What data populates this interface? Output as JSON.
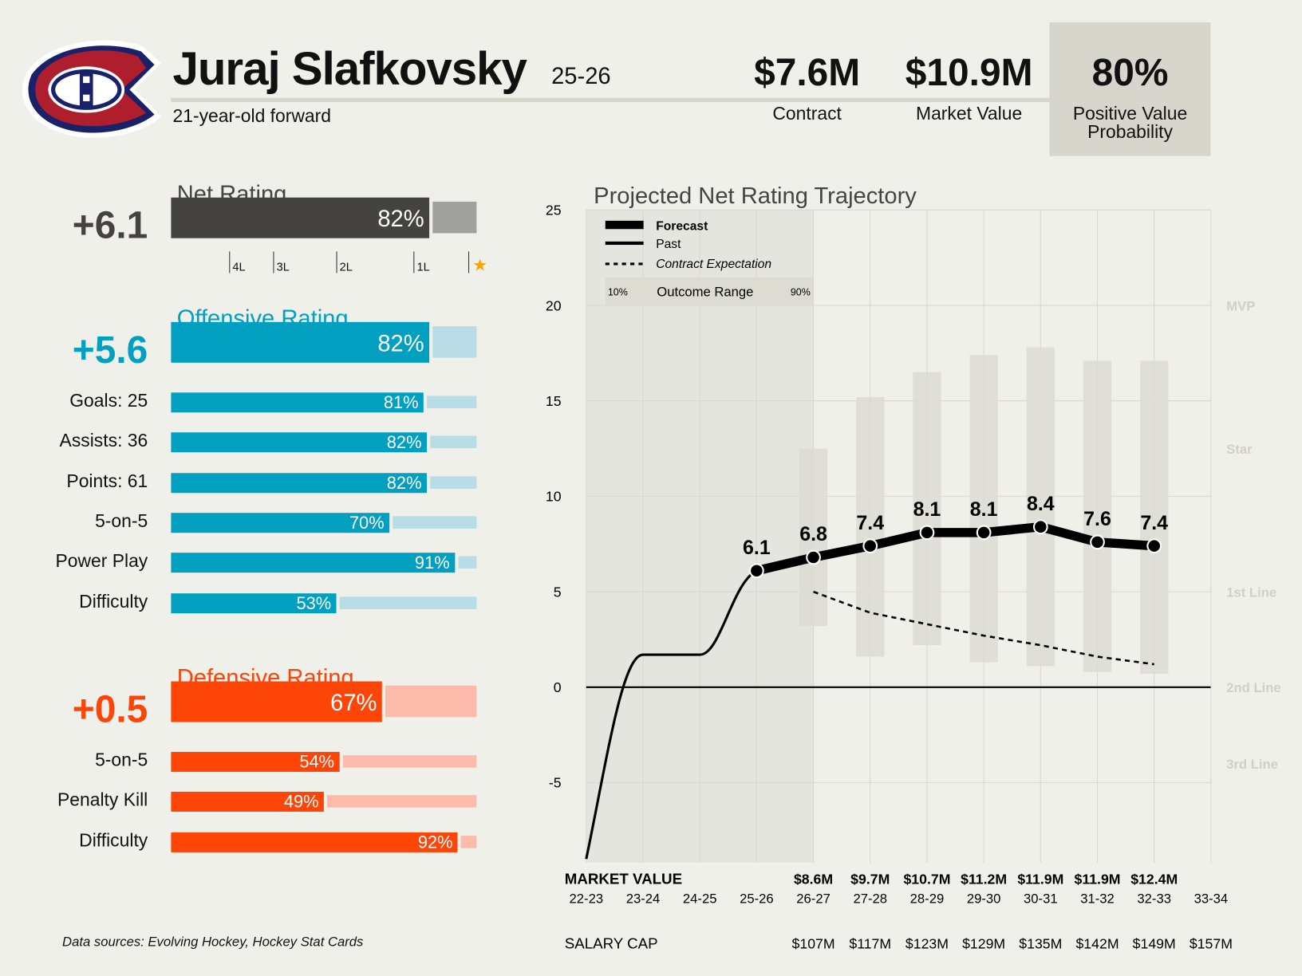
{
  "header": {
    "player": "Juraj Slafkovsky",
    "season": "25-26",
    "subtitle": "21-year-old forward",
    "contract": {
      "value": "$7.6M",
      "label": "Contract"
    },
    "market": {
      "value": "$10.9M",
      "label": "Market Value"
    },
    "pvp": {
      "value": "80%",
      "label1": "Positive Value",
      "label2": "Probability"
    }
  },
  "colors": {
    "net": "#444341",
    "net_light": "#a0a09e",
    "off": "#019fc0",
    "off_light": "#b8dde6",
    "def": "#fd4508",
    "def_light": "#fdbcab",
    "red": "#af1e2d",
    "blue": "#192168"
  },
  "net": {
    "title": "Net Rating",
    "value": "+6.1",
    "pct": 82,
    "pct_label": "82%",
    "ticks": [
      "4L",
      "3L",
      "2L",
      "1L"
    ]
  },
  "offense": {
    "title": "Offensive Rating",
    "value": "+5.6",
    "pct": 82,
    "pct_label": "82%",
    "rows": [
      {
        "label": "Goals: 25",
        "pct": 81,
        "pct_label": "81%"
      },
      {
        "label": "Assists: 36",
        "pct": 82,
        "pct_label": "82%"
      },
      {
        "label": "Points: 61",
        "pct": 82,
        "pct_label": "82%"
      },
      {
        "label": "5-on-5",
        "pct": 70,
        "pct_label": "70%"
      },
      {
        "label": "Power Play",
        "pct": 91,
        "pct_label": "91%"
      },
      {
        "label": "Difficulty",
        "pct": 53,
        "pct_label": "53%"
      }
    ]
  },
  "defense": {
    "title": "Defensive Rating",
    "value": "+0.5",
    "pct": 67,
    "pct_label": "67%",
    "rows": [
      {
        "label": "5-on-5",
        "pct": 54,
        "pct_label": "54%"
      },
      {
        "label": "Penalty Kill",
        "pct": 49,
        "pct_label": "49%"
      },
      {
        "label": "Difficulty",
        "pct": 92,
        "pct_label": "92%"
      }
    ]
  },
  "footer": {
    "sources": "Data sources: Evolving Hockey, Hockey Stat Cards"
  },
  "chart_data": {
    "type": "line",
    "title": "Projected Net Rating Trajectory",
    "categories": [
      "22-23",
      "23-24",
      "24-25",
      "25-26",
      "26-27",
      "27-28",
      "28-29",
      "29-30",
      "30-31",
      "31-32",
      "32-33",
      "33-34"
    ],
    "ylim": [
      -9.2,
      25
    ],
    "yticks": [
      -5,
      0,
      5,
      10,
      15,
      20,
      25
    ],
    "legend": {
      "forecast": "Forecast",
      "past": "Past",
      "contract": "Contract Expectation",
      "range": "Outcome Range",
      "range_low": "10%",
      "range_high": "90%"
    },
    "tiers": [
      {
        "label": "MVP",
        "y": 20
      },
      {
        "label": "Star",
        "y": 12.5
      },
      {
        "label": "1st Line",
        "y": 5
      },
      {
        "label": "2nd Line",
        "y": 0
      },
      {
        "label": "3rd Line",
        "y": -4
      }
    ],
    "past": [
      -9,
      1.7,
      1.7,
      6.1
    ],
    "forecast": [
      6.1,
      6.8,
      7.4,
      8.1,
      8.1,
      8.4,
      7.6,
      7.4
    ],
    "forecast_labels": [
      "6.1",
      "6.8",
      "7.4",
      "8.1",
      "8.1",
      "8.4",
      "7.6",
      "7.4"
    ],
    "range_low": [
      3.2,
      1.6,
      2.2,
      1.3,
      1.1,
      0.8,
      0.7
    ],
    "range_high": [
      12.5,
      15.2,
      16.5,
      17.4,
      17.8,
      17.1,
      17.1
    ],
    "contract_expectation": [
      5.0,
      3.9,
      3.3,
      2.7,
      2.2,
      1.6,
      1.2
    ],
    "market_value_label": "MARKET VALUE",
    "market_values": [
      "",
      "",
      "",
      "",
      "$8.6M",
      "$9.7M",
      "$10.7M",
      "$11.2M",
      "$11.9M",
      "$11.9M",
      "$12.4M",
      ""
    ],
    "salary_cap_label": "SALARY CAP",
    "salary_caps": [
      "",
      "",
      "",
      "",
      "$107M",
      "$117M",
      "$123M",
      "$129M",
      "$135M",
      "$142M",
      "$149M",
      "$157M"
    ]
  }
}
